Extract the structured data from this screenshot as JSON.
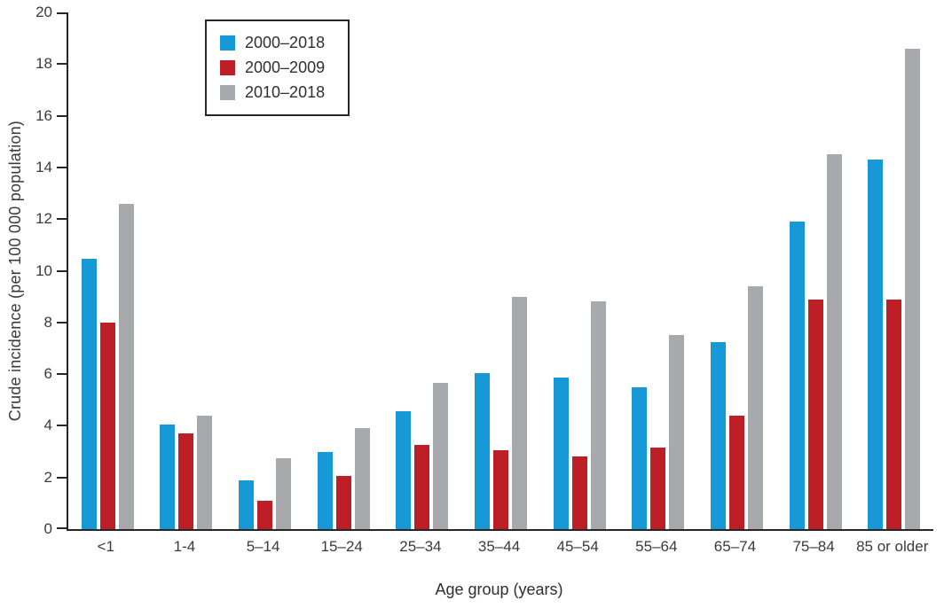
{
  "chart_data": {
    "type": "bar",
    "title": "",
    "xlabel": "Age group (years)",
    "ylabel": "Crude incidence (per 100 000 population)",
    "ylim": [
      0,
      20
    ],
    "yticks": [
      0,
      2,
      4,
      6,
      8,
      10,
      12,
      14,
      16,
      18,
      20
    ],
    "grid": false,
    "legend_position": "upper-left-inside",
    "categories": [
      "<1",
      "1-4",
      "5–14",
      "15–24",
      "25–34",
      "35–44",
      "45–54",
      "55–64",
      "65–74",
      "75–84",
      "85 or older"
    ],
    "series": [
      {
        "name": "2000–2018",
        "color": "#1699D6",
        "values": [
          10.45,
          4.05,
          1.9,
          3.0,
          4.55,
          6.05,
          5.85,
          5.5,
          7.25,
          11.9,
          14.3
        ]
      },
      {
        "name": "2000–2009",
        "color": "#BE1E26",
        "values": [
          8.0,
          3.7,
          1.1,
          2.05,
          3.25,
          3.05,
          2.8,
          3.15,
          4.4,
          8.9,
          8.9
        ]
      },
      {
        "name": "2010–2018",
        "color": "#A7A9AC",
        "values": [
          12.6,
          4.4,
          2.75,
          3.9,
          5.65,
          9.0,
          8.8,
          7.5,
          9.4,
          14.5,
          18.6
        ]
      }
    ]
  }
}
